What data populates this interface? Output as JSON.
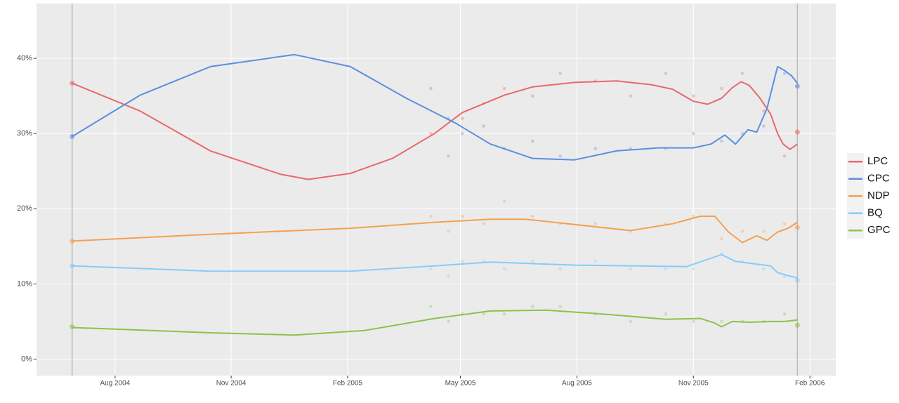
{
  "chart_data": {
    "type": "line",
    "xlim": [
      2004.412,
      2006.141
    ],
    "ylim": [
      -2.2,
      47.3
    ],
    "xticks": [
      {
        "value": 2004.582,
        "label": "Aug 2004"
      },
      {
        "value": 2004.833,
        "label": "Nov 2004"
      },
      {
        "value": 2005.085,
        "label": "Feb 2005"
      },
      {
        "value": 2005.329,
        "label": "May 2005"
      },
      {
        "value": 2005.581,
        "label": "Aug 2005"
      },
      {
        "value": 2005.833,
        "label": "Nov 2005"
      },
      {
        "value": 2006.085,
        "label": "Feb 2006"
      }
    ],
    "yticks": [
      {
        "value": 0,
        "label": "0%"
      },
      {
        "value": 10,
        "label": "10%"
      },
      {
        "value": 20,
        "label": "20%"
      },
      {
        "value": 30,
        "label": "30%"
      },
      {
        "value": 40,
        "label": "40%"
      }
    ],
    "grid": true,
    "legend": "right",
    "results_x": [
      2004.489,
      2006.058
    ],
    "poll_x": [
      2005.265,
      2005.303,
      2005.333,
      2005.379,
      2005.424,
      2005.485,
      2005.545,
      2005.621,
      2005.697,
      2005.773,
      2005.833,
      2005.894,
      2005.939,
      2005.985,
      2006.03
    ],
    "series": [
      {
        "name": "LPC",
        "color": "#e8696b",
        "x": [
          2004.489,
          2004.636,
          2004.788,
          2004.939,
          2005.0,
          2005.091,
          2005.182,
          2005.273,
          2005.333,
          2005.424,
          2005.485,
          2005.576,
          2005.667,
          2005.742,
          2005.788,
          2005.833,
          2005.864,
          2005.894,
          2005.917,
          2005.936,
          2005.954,
          2005.977,
          2006.0,
          2006.015,
          2006.027,
          2006.042,
          2006.058
        ],
        "values": [
          36.7,
          33,
          27.7,
          24.6,
          23.9,
          24.7,
          26.7,
          30,
          32.8,
          35.1,
          36.2,
          36.8,
          37,
          36.5,
          35.9,
          34.3,
          33.9,
          34.7,
          36.1,
          36.9,
          36.4,
          34.7,
          32.6,
          30,
          28.6,
          27.9,
          28.6
        ],
        "results": [
          36.7,
          30.2
        ],
        "poll_values": [
          30,
          27,
          32,
          34,
          36,
          35,
          38,
          37,
          35,
          38,
          35,
          36,
          38,
          33,
          27
        ]
      },
      {
        "name": "CPC",
        "color": "#5b8fe0",
        "x": [
          2004.489,
          2004.636,
          2004.788,
          2004.97,
          2005.091,
          2005.212,
          2005.318,
          2005.394,
          2005.485,
          2005.576,
          2005.667,
          2005.758,
          2005.833,
          2005.871,
          2005.901,
          2005.924,
          2005.951,
          2005.97,
          2005.992,
          2006.015,
          2006.03,
          2006.045,
          2006.058
        ],
        "values": [
          29.6,
          35.1,
          38.9,
          40.5,
          38.9,
          34.7,
          31.4,
          28.6,
          26.7,
          26.5,
          27.7,
          28.1,
          28.1,
          28.6,
          29.8,
          28.6,
          30.5,
          30.2,
          33.3,
          38.9,
          38.4,
          37.7,
          36.7
        ],
        "results": [
          29.6,
          36.3
        ],
        "poll_values": [
          36,
          32,
          30,
          31,
          28,
          29,
          27,
          28,
          28,
          28,
          30,
          29,
          30,
          31,
          38
        ]
      },
      {
        "name": "NDP",
        "color": "#f4a050",
        "x": [
          2004.489,
          2004.788,
          2005.091,
          2005.273,
          2005.394,
          2005.47,
          2005.576,
          2005.697,
          2005.788,
          2005.848,
          2005.879,
          2005.909,
          2005.939,
          2005.97,
          2005.992,
          2006.015,
          2006.038,
          2006.058
        ],
        "values": [
          15.7,
          16.6,
          17.4,
          18.2,
          18.6,
          18.6,
          17.9,
          17.1,
          18,
          19,
          19,
          16.9,
          15.5,
          16.4,
          15.8,
          16.9,
          17.4,
          18.2
        ],
        "results": [
          15.7,
          17.5
        ],
        "poll_values": [
          19,
          17,
          19,
          18,
          21,
          19,
          18,
          18,
          17,
          18,
          19,
          16,
          17,
          17,
          18
        ]
      },
      {
        "name": "BQ",
        "color": "#87ccfa",
        "x": [
          2004.489,
          2004.788,
          2005.091,
          2005.273,
          2005.394,
          2005.576,
          2005.818,
          2005.894,
          2005.924,
          2005.962,
          2006.0,
          2006.015,
          2006.038,
          2006.058
        ],
        "values": [
          12.4,
          11.7,
          11.7,
          12.4,
          12.9,
          12.5,
          12.3,
          13.9,
          13,
          12.7,
          12.4,
          11.5,
          11.1,
          10.8
        ],
        "results": [
          12.4,
          10.5
        ],
        "poll_values": [
          12,
          11,
          13,
          13,
          12,
          13,
          12,
          13,
          12,
          12,
          12,
          14,
          13,
          12,
          11
        ]
      },
      {
        "name": "GPC",
        "color": "#8bc34a",
        "x": [
          2004.489,
          2004.788,
          2004.97,
          2005.121,
          2005.273,
          2005.394,
          2005.515,
          2005.636,
          2005.773,
          2005.848,
          2005.879,
          2005.894,
          2005.917,
          2005.954,
          2006.0,
          2006.03,
          2006.058
        ],
        "values": [
          4.2,
          3.5,
          3.2,
          3.8,
          5.4,
          6.4,
          6.5,
          6,
          5.3,
          5.4,
          4.8,
          4.3,
          5,
          4.9,
          5,
          5,
          5.2
        ],
        "results": [
          4.3,
          4.5
        ],
        "poll_values": [
          7,
          5,
          6,
          6,
          6,
          7,
          7,
          6,
          5,
          6,
          5,
          5,
          5,
          5,
          6
        ]
      }
    ]
  }
}
